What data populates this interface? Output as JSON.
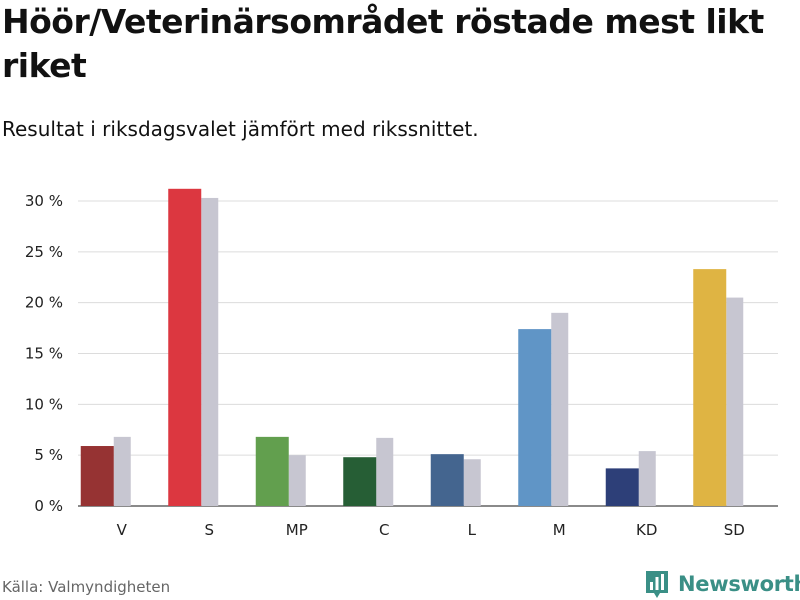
{
  "header": {
    "title": "Höör/Veterinärsområdet röstade mest likt riket",
    "subtitle": "Resultat i riksdagsvalet jämfört med rikssnittet."
  },
  "footer": {
    "source": "Källa: Valmyndigheten",
    "logo_text": "Newsworthy",
    "logo_color": "#3a8f86"
  },
  "chart_data": {
    "type": "bar",
    "title": "Höör/Veterinärsområdet röstade mest likt riket",
    "subtitle": "Resultat i riksdagsvalet jämfört med rikssnittet.",
    "xlabel": "",
    "ylabel": "",
    "ylim": [
      0,
      30
    ],
    "yticks": [
      0,
      5,
      10,
      15,
      20,
      25,
      30
    ],
    "ytick_labels": [
      "0 %",
      "5 %",
      "10 %",
      "15 %",
      "20 %",
      "25 %",
      "30 %"
    ],
    "grid": true,
    "categories": [
      "V",
      "S",
      "MP",
      "C",
      "L",
      "M",
      "KD",
      "SD"
    ],
    "series": [
      {
        "name": "Höör/Veterinärsområdet",
        "values": [
          5.9,
          31.2,
          6.8,
          4.8,
          5.1,
          17.4,
          3.7,
          23.3
        ],
        "colors": [
          "#963333",
          "#dc3740",
          "#629f4e",
          "#265e35",
          "#44658f",
          "#6095c6",
          "#2d3f78",
          "#dfb443"
        ]
      },
      {
        "name": "Riket",
        "values": [
          6.8,
          30.3,
          5.0,
          6.7,
          4.6,
          19.0,
          5.4,
          20.5
        ],
        "color": "#c7c6d1"
      }
    ]
  }
}
